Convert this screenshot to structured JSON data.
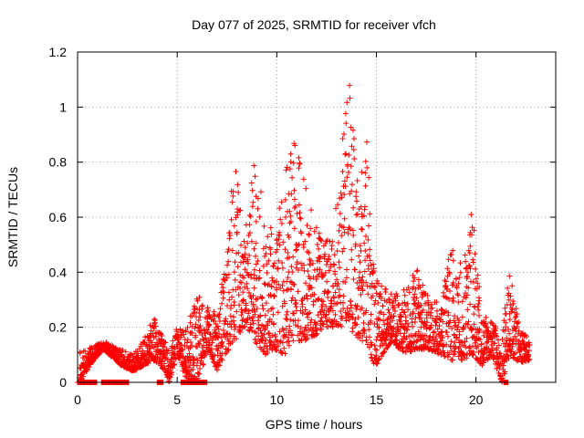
{
  "chart_data": {
    "type": "scatter",
    "title": "Day 077 of 2025, SRMTID for receiver vfch",
    "xlabel": "GPS time / hours",
    "ylabel": "SRMTID / TECUs",
    "xlim": [
      0,
      24
    ],
    "ylim": [
      0,
      1.2
    ],
    "xticks": [
      0,
      5,
      10,
      15,
      20
    ],
    "xtick_labels": [
      "0",
      "5",
      "10",
      "15",
      "20"
    ],
    "yticks": [
      0,
      0.2,
      0.4,
      0.6,
      0.8,
      1.0,
      1.2
    ],
    "ytick_labels": [
      "0",
      "0.2",
      "0.4",
      "0.6",
      "0.8",
      "1",
      "1.2"
    ],
    "grid": true,
    "marker": "+",
    "color": "#ff0000",
    "envelope": [
      [
        0.1,
        0.11,
        0.0
      ],
      [
        0.7,
        0.13,
        0.07
      ],
      [
        1.3,
        0.15,
        0.12
      ],
      [
        2.2,
        0.12,
        0.06
      ],
      [
        2.8,
        0.1,
        0.04
      ],
      [
        3.3,
        0.15,
        0.06
      ],
      [
        3.8,
        0.24,
        0.08
      ],
      [
        4.2,
        0.18,
        0.06
      ],
      [
        4.6,
        0.12,
        0.0
      ],
      [
        5.0,
        0.2,
        0.1
      ],
      [
        5.5,
        0.2,
        0.0
      ],
      [
        6.0,
        0.33,
        0.0
      ],
      [
        6.6,
        0.28,
        0.12
      ],
      [
        7.0,
        0.25,
        0.04
      ],
      [
        7.4,
        0.45,
        0.1
      ],
      [
        7.9,
        0.84,
        0.15
      ],
      [
        8.4,
        0.55,
        0.2
      ],
      [
        8.9,
        0.82,
        0.15
      ],
      [
        9.4,
        0.62,
        0.1
      ],
      [
        9.9,
        0.55,
        0.12
      ],
      [
        10.4,
        0.75,
        0.1
      ],
      [
        10.8,
        0.88,
        0.15
      ],
      [
        11.3,
        0.8,
        0.15
      ],
      [
        11.8,
        0.62,
        0.15
      ],
      [
        12.3,
        0.5,
        0.2
      ],
      [
        12.8,
        0.55,
        0.2
      ],
      [
        13.2,
        0.8,
        0.2
      ],
      [
        13.6,
        1.12,
        0.2
      ],
      [
        14.1,
        0.7,
        0.15
      ],
      [
        14.5,
        0.92,
        0.15
      ],
      [
        14.9,
        0.4,
        0.05
      ],
      [
        15.3,
        0.35,
        0.1
      ],
      [
        15.8,
        0.32,
        0.15
      ],
      [
        16.4,
        0.35,
        0.1
      ],
      [
        17.0,
        0.42,
        0.12
      ],
      [
        17.6,
        0.32,
        0.12
      ],
      [
        18.2,
        0.28,
        0.1
      ],
      [
        18.8,
        0.52,
        0.08
      ],
      [
        19.3,
        0.42,
        0.08
      ],
      [
        19.8,
        0.63,
        0.1
      ],
      [
        20.3,
        0.25,
        0.06
      ],
      [
        20.8,
        0.22,
        0.1
      ],
      [
        21.3,
        0.2,
        0.0
      ],
      [
        21.7,
        0.41,
        0.1
      ],
      [
        22.2,
        0.2,
        0.07
      ],
      [
        22.7,
        0.16,
        0.08
      ]
    ],
    "zero_runs": [
      [
        0.0,
        1.0
      ],
      [
        1.2,
        2.6
      ],
      [
        4.0,
        4.3
      ],
      [
        5.2,
        6.5
      ],
      [
        21.4,
        21.6
      ]
    ]
  }
}
